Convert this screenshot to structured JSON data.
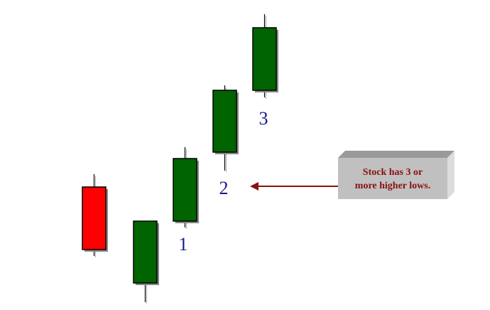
{
  "candles": [
    {
      "color": "#ff0000",
      "label": ""
    },
    {
      "color": "#006400",
      "label": ""
    },
    {
      "color": "#006400",
      "label": "1"
    },
    {
      "color": "#006400",
      "label": "2"
    },
    {
      "color": "#006400",
      "label": "3"
    }
  ],
  "callout": {
    "line1": "Stock has 3 or",
    "line2": "more higher lows.",
    "text_color": "#8b1010",
    "box_color": "#c0c0c0",
    "arrow_color": "#8b1010"
  }
}
